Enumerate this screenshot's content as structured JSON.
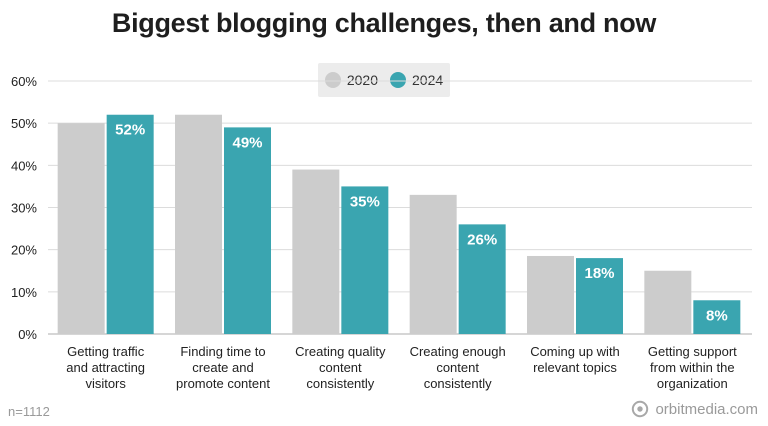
{
  "title": "Biggest blogging challenges, then and now",
  "footnote": "n=1112",
  "brand": "orbitmedia.com",
  "colors": {
    "series_2020": "#cccccc",
    "series_2024": "#3aa5b0",
    "grid": "#dcdcdc",
    "label_on_bar": "#ffffff"
  },
  "chart_data": {
    "type": "bar",
    "title": "Biggest blogging challenges, then and now",
    "xlabel": "",
    "ylabel": "",
    "ylim": [
      0,
      60
    ],
    "yticks": [
      "0%",
      "10%",
      "20%",
      "30%",
      "40%",
      "50%",
      "60%"
    ],
    "grid": true,
    "legend_position": "top-center",
    "categories": [
      [
        "Getting traffic",
        "and attracting",
        "visitors"
      ],
      [
        "Finding time to",
        "create and",
        "promote content"
      ],
      [
        "Creating quality",
        "content",
        "consistently"
      ],
      [
        "Creating enough",
        "content",
        "consistently"
      ],
      [
        "Coming up with",
        "relevant topics"
      ],
      [
        "Getting support",
        "from within the",
        "organization"
      ]
    ],
    "series": [
      {
        "name": "2020",
        "values": [
          50,
          52,
          39,
          33,
          18.5,
          15
        ],
        "labels": [
          "",
          "",
          "",
          "",
          "",
          ""
        ]
      },
      {
        "name": "2024",
        "values": [
          52,
          49,
          35,
          26,
          18,
          8
        ],
        "labels": [
          "52%",
          "49%",
          "35%",
          "26%",
          "18%",
          "8%"
        ]
      }
    ]
  }
}
